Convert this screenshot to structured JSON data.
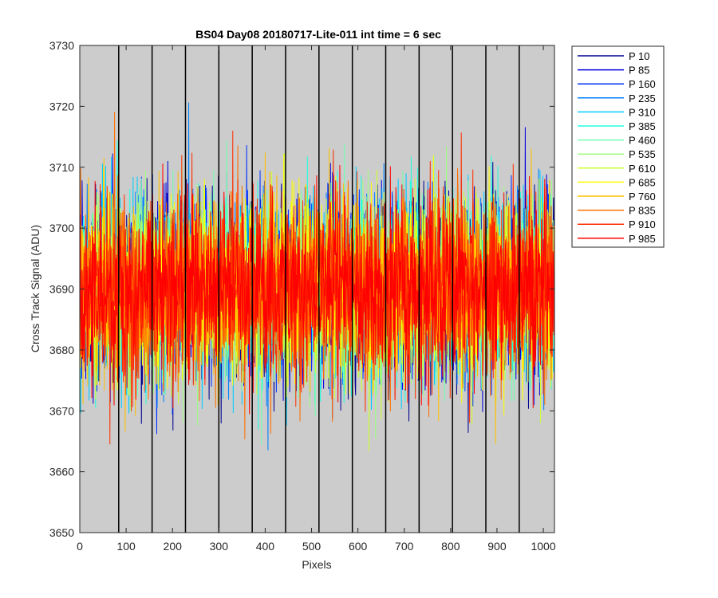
{
  "chart_data": {
    "type": "line",
    "title": "BS04 Day08 20180717-Lite-011 int time = 6 sec",
    "xlabel": "Pixels",
    "ylabel": "Cross Track Signal (ADU)",
    "xlim": [
      0,
      1024
    ],
    "ylim": [
      3650,
      3730
    ],
    "xticks": [
      0,
      100,
      200,
      300,
      400,
      500,
      600,
      700,
      800,
      900,
      1000
    ],
    "yticks": [
      3650,
      3660,
      3670,
      3680,
      3690,
      3700,
      3710,
      3720,
      3730
    ],
    "background_color": "#cccccc",
    "grid": false,
    "legend_position": "outside-top-right",
    "column_boundaries": [
      84,
      156,
      228,
      300,
      372,
      444,
      516,
      588,
      660,
      732,
      804,
      876,
      948
    ],
    "noise": {
      "center": 3690,
      "spread": 7.5,
      "min": 3654,
      "max": 3724
    },
    "series": [
      {
        "name": "P 10",
        "color": "#00008f"
      },
      {
        "name": "P 85",
        "color": "#0000df"
      },
      {
        "name": "P 160",
        "color": "#0030ff"
      },
      {
        "name": "P 235",
        "color": "#0080ff"
      },
      {
        "name": "P 310",
        "color": "#00cfff"
      },
      {
        "name": "P 385",
        "color": "#20ffdf"
      },
      {
        "name": "P 460",
        "color": "#70ffb0"
      },
      {
        "name": "P 535",
        "color": "#9fff80"
      },
      {
        "name": "P 610",
        "color": "#cfff30"
      },
      {
        "name": "P 685",
        "color": "#ffff00"
      },
      {
        "name": "P 760",
        "color": "#ffc000"
      },
      {
        "name": "P 835",
        "color": "#ff7000"
      },
      {
        "name": "P 910",
        "color": "#ff3000"
      },
      {
        "name": "P 985",
        "color": "#ff0000"
      }
    ]
  }
}
